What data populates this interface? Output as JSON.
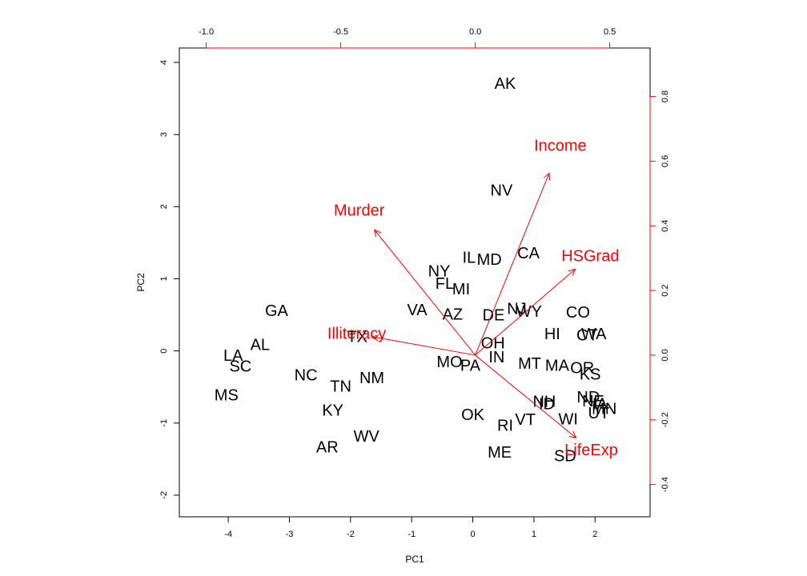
{
  "chart_data": {
    "type": "scatter",
    "xlabel": "PC1",
    "ylabel": "PC2",
    "colors": {
      "points": "#000000",
      "loadings": "#ff0000",
      "axes": "#000000"
    },
    "primary_axes": {
      "xlim": [
        -4.8,
        2.9
      ],
      "ylim": [
        -2.3,
        4.2
      ],
      "xticks": [
        -4,
        -3,
        -2,
        -1,
        0,
        1,
        2
      ],
      "yticks": [
        -2,
        -1,
        0,
        1,
        2,
        3,
        4
      ]
    },
    "secondary_axes": {
      "xlim": [
        -1.1,
        0.65
      ],
      "ylim": [
        -0.5,
        0.95
      ],
      "xticks": [
        -1.0,
        -0.5,
        0.0,
        0.5
      ],
      "xtick_labels": [
        "-1.0",
        "-0.5",
        "0.0",
        "0.5"
      ],
      "yticks": [
        -0.4,
        -0.2,
        0.0,
        0.2,
        0.4,
        0.6,
        0.8
      ]
    },
    "points": [
      {
        "label": "AK",
        "x": 0.53,
        "y": 3.7
      },
      {
        "label": "NV",
        "x": 0.47,
        "y": 2.22
      },
      {
        "label": "CA",
        "x": 0.91,
        "y": 1.35
      },
      {
        "label": "IL",
        "x": -0.06,
        "y": 1.29
      },
      {
        "label": "MD",
        "x": 0.27,
        "y": 1.26
      },
      {
        "label": "NY",
        "x": -0.55,
        "y": 1.1
      },
      {
        "label": "FL",
        "x": -0.46,
        "y": 0.93
      },
      {
        "label": "MI",
        "x": -0.19,
        "y": 0.85
      },
      {
        "label": "VA",
        "x": -0.91,
        "y": 0.56
      },
      {
        "label": "AZ",
        "x": -0.33,
        "y": 0.5
      },
      {
        "label": "DE",
        "x": 0.34,
        "y": 0.49
      },
      {
        "label": "NJ",
        "x": 0.72,
        "y": 0.58
      },
      {
        "label": "WY",
        "x": 0.92,
        "y": 0.54
      },
      {
        "label": "CO",
        "x": 1.72,
        "y": 0.53
      },
      {
        "label": "HI",
        "x": 1.3,
        "y": 0.23
      },
      {
        "label": "WA",
        "x": 1.98,
        "y": 0.23
      },
      {
        "label": "CT",
        "x": 1.87,
        "y": 0.21
      },
      {
        "label": "OH",
        "x": 0.33,
        "y": 0.1
      },
      {
        "label": "IN",
        "x": 0.39,
        "y": -0.09
      },
      {
        "label": "MO",
        "x": -0.38,
        "y": -0.16
      },
      {
        "label": "PA",
        "x": -0.04,
        "y": -0.21
      },
      {
        "label": "MT",
        "x": 0.93,
        "y": -0.18
      },
      {
        "label": "MA",
        "x": 1.38,
        "y": -0.21
      },
      {
        "label": "OR",
        "x": 1.79,
        "y": -0.24
      },
      {
        "label": "KS",
        "x": 1.92,
        "y": -0.33
      },
      {
        "label": "NE",
        "x": 1.97,
        "y": -0.7
      },
      {
        "label": "ND",
        "x": 1.89,
        "y": -0.65
      },
      {
        "label": "IA",
        "x": 2.08,
        "y": -0.74
      },
      {
        "label": "MN",
        "x": 2.15,
        "y": -0.81
      },
      {
        "label": "UT",
        "x": 2.06,
        "y": -0.87
      },
      {
        "label": "NH",
        "x": 1.17,
        "y": -0.71
      },
      {
        "label": "ID",
        "x": 1.21,
        "y": -0.74
      },
      {
        "label": "WI",
        "x": 1.56,
        "y": -0.95
      },
      {
        "label": "VT",
        "x": 0.86,
        "y": -0.96
      },
      {
        "label": "RI",
        "x": 0.53,
        "y": -1.04
      },
      {
        "label": "OK",
        "x": 0.0,
        "y": -0.89
      },
      {
        "label": "ME",
        "x": 0.44,
        "y": -1.41
      },
      {
        "label": "SD",
        "x": 1.51,
        "y": -1.46
      },
      {
        "label": "TX",
        "x": -1.89,
        "y": 0.19
      },
      {
        "label": "GA",
        "x": -3.21,
        "y": 0.55
      },
      {
        "label": "AL",
        "x": -3.48,
        "y": 0.08
      },
      {
        "label": "LA",
        "x": -3.92,
        "y": -0.07
      },
      {
        "label": "SC",
        "x": -3.8,
        "y": -0.22
      },
      {
        "label": "NC",
        "x": -2.73,
        "y": -0.34
      },
      {
        "label": "NM",
        "x": -1.65,
        "y": -0.38
      },
      {
        "label": "TN",
        "x": -2.16,
        "y": -0.5
      },
      {
        "label": "MS",
        "x": -4.03,
        "y": -0.62
      },
      {
        "label": "KY",
        "x": -2.29,
        "y": -0.83
      },
      {
        "label": "WV",
        "x": -1.74,
        "y": -1.19
      },
      {
        "label": "AR",
        "x": -2.38,
        "y": -1.34
      }
    ],
    "loadings": [
      {
        "label": "Income",
        "x": 0.275,
        "y": 0.563
      },
      {
        "label": "Murder",
        "x": -0.375,
        "y": 0.388
      },
      {
        "label": "HSGrad",
        "x": 0.372,
        "y": 0.266
      },
      {
        "label": "Illiteracy",
        "x": -0.383,
        "y": 0.057
      },
      {
        "label": "LifeExp",
        "x": 0.375,
        "y": -0.256
      }
    ]
  }
}
